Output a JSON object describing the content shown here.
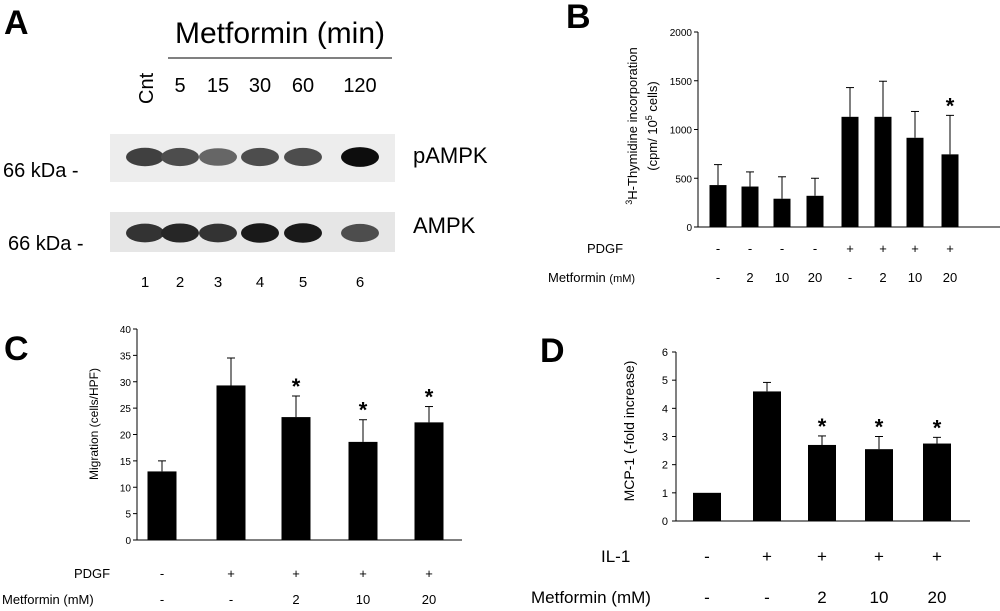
{
  "panel_a": {
    "letter": "A",
    "title": "Metformin (min)",
    "control_label": "Cnt",
    "time_labels": [
      "5",
      "15",
      "30",
      "60",
      "120"
    ],
    "bands": [
      {
        "name": "pAMPK",
        "mw": "66 kDa -",
        "intensities": [
          0.75,
          0.7,
          0.6,
          0.7,
          0.7,
          0.95
        ]
      },
      {
        "name": "AMPK",
        "mw": "66 kDa -",
        "intensities": [
          0.8,
          0.85,
          0.8,
          0.9,
          0.9,
          0.7
        ]
      }
    ],
    "lane_numbers": [
      "1",
      "2",
      "3",
      "4",
      "5",
      "6"
    ]
  },
  "chart_data": [
    {
      "panel": "B",
      "type": "bar",
      "ylabel_line1": "3H-Thymidine incorporation",
      "ylabel_line1_sup": "3",
      "ylabel_line1_main": "H-Thymidine incorporation",
      "ylabel_line2_pre": "(cpm/ 10",
      "ylabel_line2_sup": "5",
      "ylabel_line2_post": " cells)",
      "ylim": [
        0,
        2000
      ],
      "yticks": [
        "0",
        "500",
        "1000",
        "1500",
        "2000"
      ],
      "ytick_values": [
        0,
        500,
        1000,
        1500,
        2000
      ],
      "values": [
        430,
        415,
        290,
        320,
        1130,
        1130,
        915,
        745
      ],
      "errors": [
        210,
        150,
        225,
        180,
        300,
        365,
        270,
        400
      ],
      "significant": [
        false,
        false,
        false,
        false,
        false,
        false,
        false,
        true
      ],
      "star": "*",
      "conditions": [
        {
          "label": "PDGF",
          "values": [
            "-",
            "-",
            "-",
            "-",
            "+",
            "+",
            "+",
            "+"
          ]
        },
        {
          "label": "Metformin",
          "unit": "(mM)",
          "values": [
            "-",
            "2",
            "10",
            "20",
            "-",
            "2",
            "10",
            "20"
          ]
        }
      ]
    },
    {
      "panel": "C",
      "type": "bar",
      "ylabel": "Migration (cells/HPF)",
      "ylim": [
        0,
        40
      ],
      "yticks": [
        "0",
        "5",
        "10",
        "15",
        "20",
        "25",
        "30",
        "35",
        "40"
      ],
      "ytick_values": [
        0,
        5,
        10,
        15,
        20,
        25,
        30,
        35,
        40
      ],
      "values": [
        13,
        29.3,
        23.3,
        18.6,
        22.3
      ],
      "errors": [
        2.0,
        5.2,
        4.0,
        4.2,
        3.0
      ],
      "significant": [
        false,
        false,
        true,
        true,
        true
      ],
      "star": "*",
      "conditions": [
        {
          "label": "PDGF",
          "values": [
            "-",
            "+",
            "+",
            "+",
            "+"
          ]
        },
        {
          "label": "Metformin (mM)",
          "values": [
            "-",
            "-",
            "2",
            "10",
            "20"
          ]
        }
      ]
    },
    {
      "panel": "D",
      "type": "bar",
      "ylabel": "MCP-1 (-fold increase)",
      "ylim": [
        0,
        6
      ],
      "yticks": [
        "0",
        "1",
        "2",
        "3",
        "4",
        "5",
        "6"
      ],
      "ytick_values": [
        0,
        1,
        2,
        3,
        4,
        5,
        6
      ],
      "values": [
        1.0,
        4.6,
        2.7,
        2.55,
        2.75
      ],
      "errors": [
        0.0,
        0.32,
        0.32,
        0.45,
        0.22
      ],
      "significant": [
        false,
        false,
        true,
        true,
        true
      ],
      "star": "*",
      "conditions": [
        {
          "label": "IL-1",
          "values": [
            "-",
            "+",
            "+",
            "+",
            "+"
          ]
        },
        {
          "label": "Metformin (mM)",
          "values": [
            "-",
            "-",
            "2",
            "10",
            "20"
          ]
        }
      ]
    }
  ],
  "letters": {
    "b": "B",
    "c": "C",
    "d": "D"
  }
}
